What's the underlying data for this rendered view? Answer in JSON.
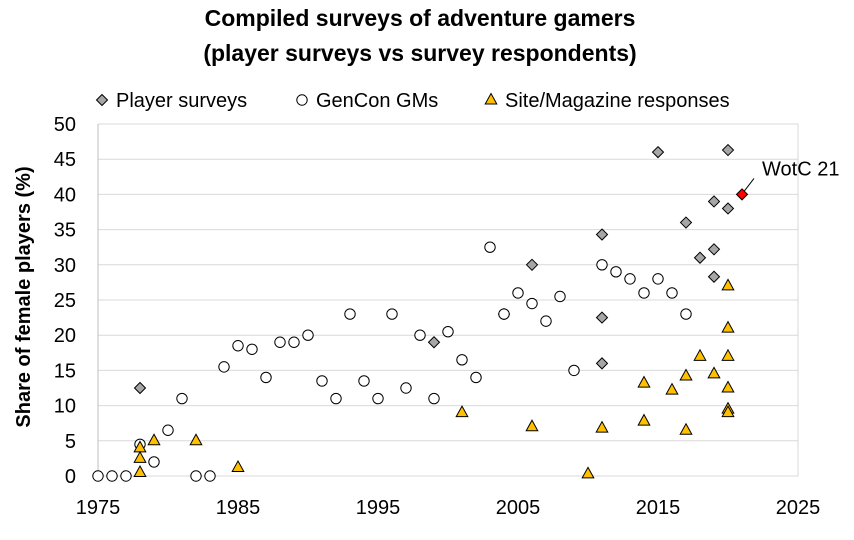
{
  "chart_data": {
    "type": "scatter",
    "title": [
      "Compiled surveys of adventure gamers",
      "(player surveys vs survey respondents)"
    ],
    "xlabel": "",
    "ylabel": "Share of female players (%)",
    "xlim": [
      1975,
      2025
    ],
    "ylim": [
      0,
      50
    ],
    "xticks": [
      1975,
      1985,
      1995,
      2005,
      2015,
      2025
    ],
    "yticks": [
      0,
      5,
      10,
      15,
      20,
      25,
      30,
      35,
      40,
      45,
      50
    ],
    "grid": "horizontal",
    "legend_position": "top",
    "series": [
      {
        "name": "Player surveys",
        "marker": "diamond",
        "color": "#a6a6a6",
        "points": [
          [
            1978,
            12.5
          ],
          [
            1999,
            19
          ],
          [
            2004,
            23
          ],
          [
            2006,
            30
          ],
          [
            2011,
            34.3
          ],
          [
            2011,
            22.5
          ],
          [
            2011,
            16
          ],
          [
            2015,
            46
          ],
          [
            2017,
            36
          ],
          [
            2018,
            31
          ],
          [
            2019,
            39
          ],
          [
            2019,
            32.2
          ],
          [
            2019,
            28.3
          ],
          [
            2020,
            46.3
          ],
          [
            2020,
            38
          ]
        ]
      },
      {
        "name": "GenCon GMs",
        "marker": "circle",
        "color": "#ffffff",
        "points": [
          [
            1975,
            0
          ],
          [
            1976,
            0
          ],
          [
            1977,
            0
          ],
          [
            1978,
            4.5
          ],
          [
            1979,
            2
          ],
          [
            1980,
            6.5
          ],
          [
            1981,
            11
          ],
          [
            1982,
            0
          ],
          [
            1983,
            0
          ],
          [
            1984,
            15.5
          ],
          [
            1985,
            18.5
          ],
          [
            1986,
            18
          ],
          [
            1987,
            14
          ],
          [
            1988,
            19
          ],
          [
            1989,
            19
          ],
          [
            1990,
            20
          ],
          [
            1991,
            13.5
          ],
          [
            1992,
            11
          ],
          [
            1993,
            23
          ],
          [
            1994,
            13.5
          ],
          [
            1995,
            11
          ],
          [
            1996,
            23
          ],
          [
            1997,
            12.5
          ],
          [
            1998,
            20
          ],
          [
            1999,
            11
          ],
          [
            2000,
            20.5
          ],
          [
            2001,
            16.5
          ],
          [
            2002,
            14
          ],
          [
            2003,
            32.5
          ],
          [
            2004,
            23
          ],
          [
            2005,
            26
          ],
          [
            2006,
            24.5
          ],
          [
            2007,
            22
          ],
          [
            2008,
            25.5
          ],
          [
            2009,
            15
          ],
          [
            2011,
            30
          ],
          [
            2012,
            29
          ],
          [
            2013,
            28
          ],
          [
            2014,
            26
          ],
          [
            2015,
            28
          ],
          [
            2016,
            26
          ],
          [
            2017,
            23
          ]
        ]
      },
      {
        "name": "Site/Magazine responses",
        "marker": "triangle",
        "color": "#ffc000",
        "points": [
          [
            1978,
            4
          ],
          [
            1978,
            2.5
          ],
          [
            1978,
            0.5
          ],
          [
            1979,
            5
          ],
          [
            1982,
            5
          ],
          [
            1985,
            1.2
          ],
          [
            2001,
            9
          ],
          [
            2006,
            7
          ],
          [
            2010,
            0.3
          ],
          [
            2011,
            6.8
          ],
          [
            2014,
            13.2
          ],
          [
            2014,
            7.8
          ],
          [
            2016,
            12.2
          ],
          [
            2017,
            14.2
          ],
          [
            2017,
            6.5
          ],
          [
            2018,
            17
          ],
          [
            2019,
            14.5
          ],
          [
            2020,
            27
          ],
          [
            2020,
            21
          ],
          [
            2020,
            17
          ],
          [
            2020,
            12.5
          ],
          [
            2020,
            9.5
          ],
          [
            2020,
            9
          ]
        ]
      },
      {
        "marker": "diamond",
        "color": "#ff0000",
        "points": [
          [
            2021,
            40
          ]
        ]
      }
    ],
    "annotations": [
      {
        "text": "WotC 21",
        "x": 2021,
        "y": 40
      }
    ]
  }
}
